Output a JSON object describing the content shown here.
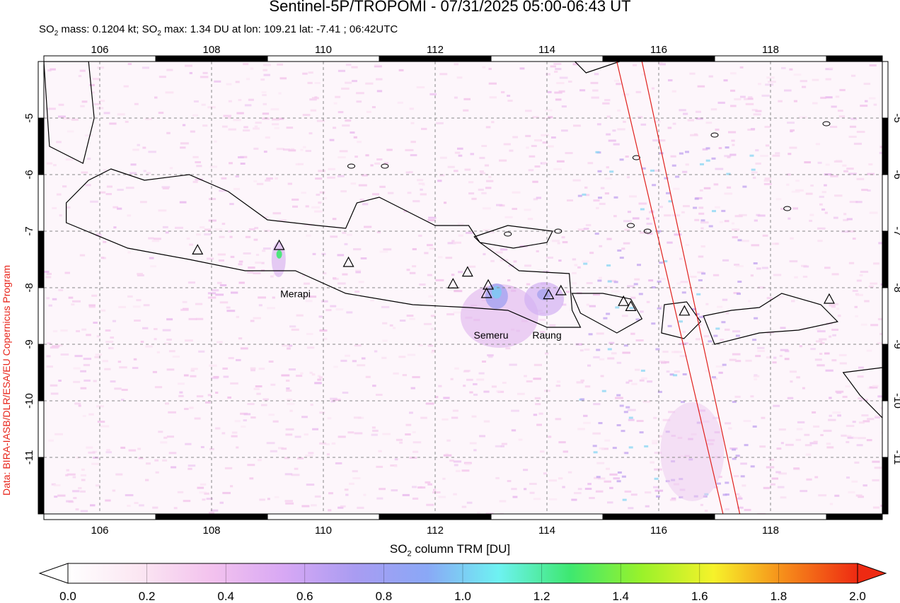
{
  "title": "Sentinel-5P/TROPOMI - 07/31/2025 05:00-06:43 UT",
  "subtitle": {
    "prefix": "SO",
    "sub": "2",
    "mid": " mass: 0.1204 kt; SO",
    "sub2": "2",
    "rest": " max: 1.34 DU at lon: 109.21 lat: -7.41 ; 06:42UTC"
  },
  "credit": "Data: BIRA-IASB/DLR/ESA/EU Copernicus Program",
  "colorbar": {
    "label_prefix": "SO",
    "label_sub": "2",
    "label_rest": " column TRM [DU]",
    "min": 0.0,
    "max": 2.0,
    "ticks": [
      "0.0",
      "0.2",
      "0.4",
      "0.6",
      "0.8",
      "1.0",
      "1.2",
      "1.4",
      "1.6",
      "1.8",
      "2.0"
    ],
    "colors": [
      "#ffffff",
      "#fbe6f2",
      "#f3c2ee",
      "#d8a8f4",
      "#a99cf2",
      "#8aa8f6",
      "#6ef2f2",
      "#3ee870",
      "#9af22a",
      "#f6f22a",
      "#f68a1a",
      "#ee2a12"
    ]
  },
  "map": {
    "lon_range": [
      105.0,
      120.0
    ],
    "lat_range": [
      -12.0,
      -4.0
    ],
    "lon_ticks": [
      "106",
      "108",
      "110",
      "112",
      "114",
      "116",
      "118"
    ],
    "lat_ticks": [
      "-5",
      "-6",
      "-7",
      "-8",
      "-9",
      "-10",
      "-11"
    ],
    "coast_color": "#000000",
    "swath_color": "#e0201c",
    "volcano_labels": [
      {
        "name": "Merapi",
        "lon": 109.5,
        "lat": -8.17
      },
      {
        "name": "Semeru",
        "lon": 113.0,
        "lat": -8.9
      },
      {
        "name": "Raung",
        "lon": 114.0,
        "lat": -8.9
      }
    ],
    "volcanoes": [
      {
        "lon": 107.75,
        "lat": -7.33
      },
      {
        "lon": 109.21,
        "lat": -7.25
      },
      {
        "lon": 110.45,
        "lat": -7.55
      },
      {
        "lon": 112.32,
        "lat": -7.93
      },
      {
        "lon": 112.58,
        "lat": -7.72
      },
      {
        "lon": 112.95,
        "lat": -7.95
      },
      {
        "lon": 112.92,
        "lat": -8.1
      },
      {
        "lon": 114.03,
        "lat": -8.12
      },
      {
        "lon": 114.25,
        "lat": -8.05
      },
      {
        "lon": 115.37,
        "lat": -8.24
      },
      {
        "lon": 115.5,
        "lat": -8.33
      },
      {
        "lon": 116.46,
        "lat": -8.41
      },
      {
        "lon": 119.05,
        "lat": -8.2
      }
    ]
  }
}
